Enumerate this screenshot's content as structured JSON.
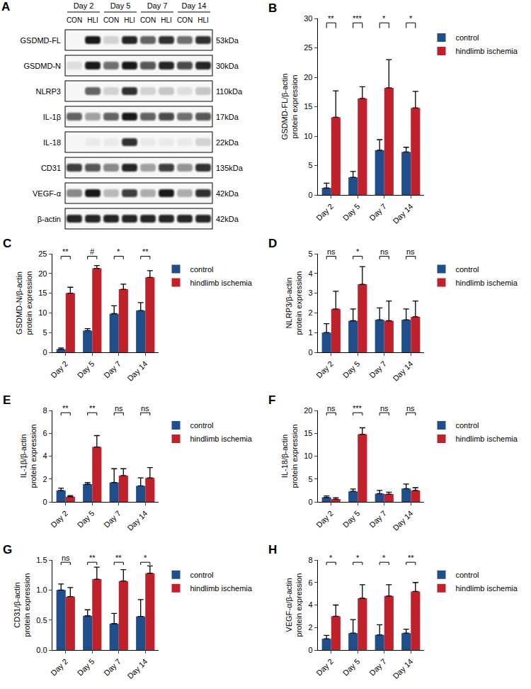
{
  "blot": {
    "label": "A",
    "groups": [
      "Day 2",
      "Day 5",
      "Day 7",
      "Day 14"
    ],
    "lanes": [
      "CON",
      "HLI"
    ],
    "rows": [
      {
        "name": "GSDMD-FL",
        "size": "53kDa",
        "intensity": [
          0.0,
          0.95,
          0.15,
          0.9,
          0.6,
          0.85,
          0.55,
          0.85
        ]
      },
      {
        "name": "GSDMD-N",
        "size": "30kDa",
        "intensity": [
          0.1,
          0.95,
          0.55,
          0.95,
          0.7,
          0.9,
          0.75,
          0.9
        ]
      },
      {
        "name": "NLRP3",
        "size": "110kDa",
        "intensity": [
          0.0,
          0.6,
          0.15,
          0.85,
          0.15,
          0.2,
          0.1,
          0.2
        ]
      },
      {
        "name": "IL-1β",
        "size": "17kDa",
        "intensity": [
          0.6,
          0.35,
          0.6,
          0.95,
          0.65,
          0.75,
          0.55,
          0.7
        ]
      },
      {
        "name": "IL-18",
        "size": "22kDa",
        "intensity": [
          0.0,
          0.05,
          0.05,
          0.85,
          0.05,
          0.05,
          0.05,
          0.15
        ]
      },
      {
        "name": "CD31",
        "size": "135kDa",
        "intensity": [
          0.8,
          0.7,
          0.45,
          0.9,
          0.35,
          0.8,
          0.4,
          0.85
        ]
      },
      {
        "name": "VEGF-α",
        "size": "42kDa",
        "intensity": [
          0.45,
          0.95,
          0.25,
          0.8,
          0.3,
          0.95,
          0.3,
          0.85
        ]
      },
      {
        "name": "β-actin",
        "size": "42kDa",
        "intensity": [
          0.9,
          0.9,
          0.9,
          0.9,
          0.9,
          0.9,
          0.9,
          0.9
        ]
      }
    ]
  },
  "chart_data": [
    {
      "label": "B",
      "type": "bar",
      "categories": [
        "Day 2",
        "Day 5",
        "Day 7",
        "Day 14"
      ],
      "y_label": [
        "GSDMD-FL/β-actin",
        "protein expression"
      ],
      "ylim": [
        0,
        30
      ],
      "yticks": [
        0,
        5,
        10,
        15,
        20,
        25,
        30
      ],
      "legend": "right",
      "series": [
        {
          "name": "control",
          "color": "#1f4e8a",
          "values": [
            1.2,
            3.0,
            7.6,
            7.3
          ],
          "error": [
            0.8,
            1.0,
            1.8,
            0.8
          ]
        },
        {
          "name": "hindlimb ischemia",
          "color": "#c0222c",
          "values": [
            13.2,
            16.4,
            18.2,
            14.8
          ],
          "error": [
            4.5,
            2.0,
            4.8,
            2.8
          ]
        }
      ],
      "significance": [
        "**",
        "***",
        "*",
        "*"
      ]
    },
    {
      "label": "C",
      "type": "bar",
      "categories": [
        "Day 2",
        "Day 5",
        "Day 7",
        "Day 14"
      ],
      "y_label": [
        "GSDMD-N/β-actin",
        "protein expression"
      ],
      "ylim": [
        0,
        25
      ],
      "yticks": [
        0,
        5,
        10,
        15,
        20,
        25
      ],
      "legend": "right",
      "series": [
        {
          "name": "control",
          "color": "#1f4e8a",
          "values": [
            0.8,
            5.5,
            9.8,
            10.6
          ],
          "error": [
            0.3,
            0.5,
            2.0,
            2.0
          ]
        },
        {
          "name": "hindlimb ischemia",
          "color": "#c0222c",
          "values": [
            15.0,
            21.3,
            16.0,
            19.0
          ],
          "error": [
            1.5,
            0.7,
            1.3,
            1.7
          ]
        }
      ],
      "significance": [
        "**",
        "#",
        "*",
        "**"
      ]
    },
    {
      "label": "D",
      "type": "bar",
      "categories": [
        "Day 2",
        "Day 5",
        "Day 7",
        "Day 14"
      ],
      "y_label": [
        "NLRP3/β-actin",
        "protein expression"
      ],
      "ylim": [
        0,
        5
      ],
      "yticks": [
        0,
        1,
        2,
        3,
        4,
        5
      ],
      "legend": "right",
      "series": [
        {
          "name": "control",
          "color": "#1f4e8a",
          "values": [
            1.0,
            1.6,
            1.65,
            1.65
          ],
          "error": [
            0.45,
            0.6,
            0.6,
            0.55
          ]
        },
        {
          "name": "hindlimb ischemia",
          "color": "#c0222c",
          "values": [
            2.2,
            3.45,
            1.6,
            1.8
          ],
          "error": [
            0.9,
            0.9,
            1.0,
            0.8
          ]
        }
      ],
      "significance": [
        "ns",
        "*",
        "ns",
        "ns"
      ]
    },
    {
      "label": "E",
      "type": "bar",
      "categories": [
        "Day 2",
        "Day 5",
        "Day 7",
        "Day 14"
      ],
      "y_label": [
        "IL-1β/β-actin",
        "protein expression"
      ],
      "ylim": [
        0,
        8
      ],
      "yticks": [
        0,
        2,
        4,
        6,
        8
      ],
      "legend": "right",
      "series": [
        {
          "name": "control",
          "color": "#1f4e8a",
          "values": [
            1.0,
            1.55,
            1.7,
            1.4
          ],
          "error": [
            0.2,
            0.15,
            1.2,
            0.7
          ]
        },
        {
          "name": "hindlimb ischemia",
          "color": "#c0222c",
          "values": [
            0.45,
            4.8,
            2.3,
            2.1
          ],
          "error": [
            0.1,
            1.0,
            0.6,
            0.9
          ]
        }
      ],
      "significance": [
        "**",
        "**",
        "ns",
        "ns"
      ]
    },
    {
      "label": "F",
      "type": "bar",
      "categories": [
        "Day 2",
        "Day 5",
        "Day 7",
        "Day 14"
      ],
      "y_label": [
        "IL-18/β-actin",
        "protein expression"
      ],
      "ylim": [
        0,
        20
      ],
      "yticks": [
        0,
        5,
        10,
        15,
        20
      ],
      "legend": "right",
      "series": [
        {
          "name": "control",
          "color": "#1f4e8a",
          "values": [
            1.0,
            2.3,
            1.8,
            2.9
          ],
          "error": [
            0.3,
            0.5,
            0.7,
            1.0
          ]
        },
        {
          "name": "hindlimb ischemia",
          "color": "#c0222c",
          "values": [
            0.6,
            14.8,
            1.7,
            2.5
          ],
          "error": [
            0.3,
            1.4,
            0.4,
            0.6
          ]
        }
      ],
      "significance": [
        "ns",
        "***",
        "ns",
        "ns"
      ]
    },
    {
      "label": "G",
      "type": "bar",
      "categories": [
        "Day 2",
        "Day 5",
        "Day 7",
        "Day 14"
      ],
      "y_label": [
        "CD31/β-actin",
        "protein expression"
      ],
      "ylim": [
        0,
        1.5
      ],
      "yticks": [
        {
          "value": 0,
          "label": "0.0"
        },
        0.5,
        {
          "value": 1,
          "label": "1.0"
        },
        1.5
      ],
      "legend": "right",
      "series": [
        {
          "name": "control",
          "color": "#1f4e8a",
          "values": [
            1.0,
            0.57,
            0.44,
            0.56
          ],
          "error": [
            0.1,
            0.1,
            0.17,
            0.28
          ]
        },
        {
          "name": "hindlimb ischemia",
          "color": "#c0222c",
          "values": [
            0.89,
            1.18,
            1.15,
            1.28
          ],
          "error": [
            0.15,
            0.2,
            0.19,
            0.12
          ]
        }
      ],
      "significance": [
        "ns",
        "**",
        "**",
        "*"
      ]
    },
    {
      "label": "H",
      "type": "bar",
      "categories": [
        "Day 2",
        "Day 5",
        "Day 7",
        "Day 14"
      ],
      "y_label": [
        "VEGF-α/β-actin",
        "protein expression"
      ],
      "ylim": [
        0,
        8
      ],
      "yticks": [
        0,
        2,
        4,
        6,
        8
      ],
      "legend": "right",
      "series": [
        {
          "name": "control",
          "color": "#1f4e8a",
          "values": [
            1.0,
            1.5,
            1.35,
            1.5
          ],
          "error": [
            0.3,
            1.2,
            0.9,
            0.35
          ]
        },
        {
          "name": "hindlimb ischemia",
          "color": "#c0222c",
          "values": [
            3.0,
            4.6,
            4.8,
            5.2
          ],
          "error": [
            1.0,
            1.2,
            1.0,
            0.8
          ]
        }
      ],
      "significance": [
        "*",
        "*",
        "*",
        "**"
      ]
    }
  ]
}
